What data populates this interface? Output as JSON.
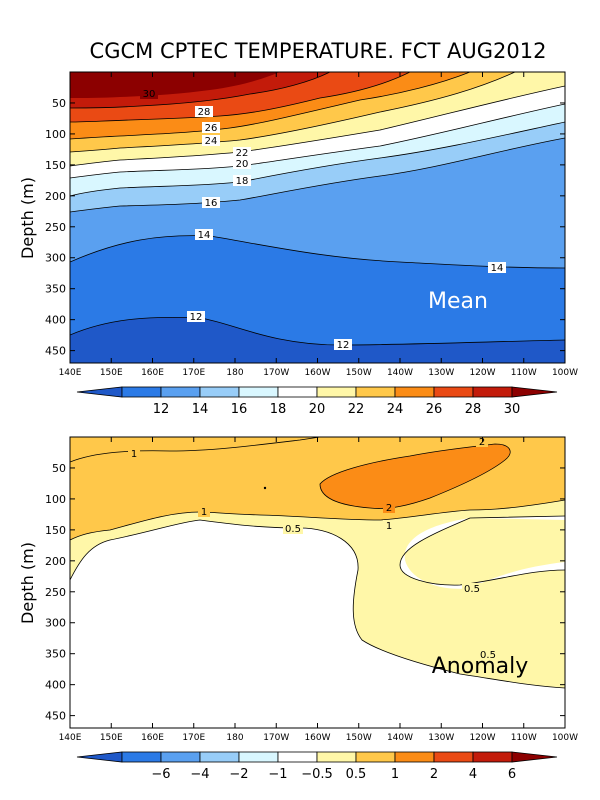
{
  "chart_data": [
    {
      "type": "contour",
      "title": "CGCM CPTEC TEMPERATURE. FCT AUG2012",
      "panel_label": "Mean",
      "ylabel": "Depth (m)",
      "xlabel": "",
      "x_ticks": [
        "140E",
        "150E",
        "160E",
        "170E",
        "180",
        "170W",
        "160W",
        "150W",
        "140W",
        "130W",
        "120W",
        "110W",
        "100W"
      ],
      "y_ticks": [
        "50",
        "100",
        "150",
        "200",
        "250",
        "300",
        "350",
        "400",
        "450"
      ],
      "ylim": [
        470,
        0
      ],
      "colorbar": {
        "labels": [
          "12",
          "14",
          "16",
          "18",
          "20",
          "22",
          "24",
          "26",
          "28",
          "30"
        ],
        "colors": [
          "#1f58c8",
          "#2b7ae6",
          "#5aa0f0",
          "#98cdf8",
          "#d9f7ff",
          "#ffffff",
          "#fff7a8",
          "#ffc84a",
          "#fb8c16",
          "#ea4a14",
          "#c31b0a",
          "#8c0000"
        ]
      },
      "contour_labels": [
        "30",
        "28",
        "26",
        "24",
        "22",
        "20",
        "18",
        "16",
        "14",
        "14",
        "12",
        "12"
      ]
    },
    {
      "type": "contour",
      "panel_label": "Anomaly",
      "ylabel": "Depth (m)",
      "xlabel": "",
      "x_ticks": [
        "140E",
        "150E",
        "160E",
        "170E",
        "180",
        "170W",
        "160W",
        "150W",
        "140W",
        "130W",
        "120W",
        "110W",
        "100W"
      ],
      "y_ticks": [
        "50",
        "100",
        "150",
        "200",
        "250",
        "300",
        "350",
        "400",
        "450"
      ],
      "ylim": [
        470,
        0
      ],
      "colorbar": {
        "labels": [
          "−6",
          "−4",
          "−2",
          "−1",
          "−0.5",
          "0.5",
          "1",
          "2",
          "4",
          "6"
        ],
        "colors": [
          "#1f58c8",
          "#2b7ae6",
          "#5aa0f0",
          "#98cdf8",
          "#d9f7ff",
          "#ffffff",
          "#fff7a8",
          "#ffc84a",
          "#fb8c16",
          "#ea4a14",
          "#c31b0a",
          "#8c0000"
        ]
      },
      "contour_labels": [
        "1",
        "2",
        "1",
        "2",
        "1",
        "0.5",
        "0.5",
        "0.5"
      ]
    }
  ]
}
